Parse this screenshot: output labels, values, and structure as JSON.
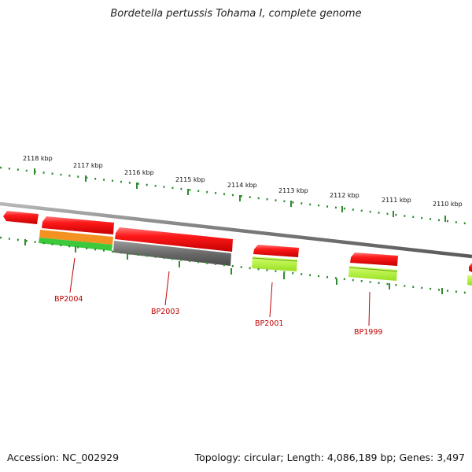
{
  "header": {
    "title": "Bordetella pertussis Tohama I, complete genome"
  },
  "footer": {
    "accession": "Accession: NC_002929",
    "summary": "Topology: circular; Length: 4,086,189 bp; Genes: 3,497"
  },
  "ruler": {
    "tick_labels": [
      "2118 kbp",
      "2117 kbp",
      "2116 kbp",
      "2115 kbp",
      "2114 kbp",
      "2113 kbp",
      "2112 kbp",
      "2111 kbp",
      "2110 kbp"
    ]
  },
  "genes": {
    "labels": [
      "BP2004",
      "BP2003",
      "BP2001",
      "BP1999"
    ]
  },
  "colors": {
    "cds": "#ee1111",
    "cds_highlight": "#ff6b6b",
    "track_orange": "#f39220",
    "track_green": "#3cc93c",
    "track_gray": "#707070",
    "track_lime": "#a8f030",
    "tick_green": "#2e8b2e",
    "backbone": "#8a8a8a",
    "label_red": "#c00000"
  }
}
